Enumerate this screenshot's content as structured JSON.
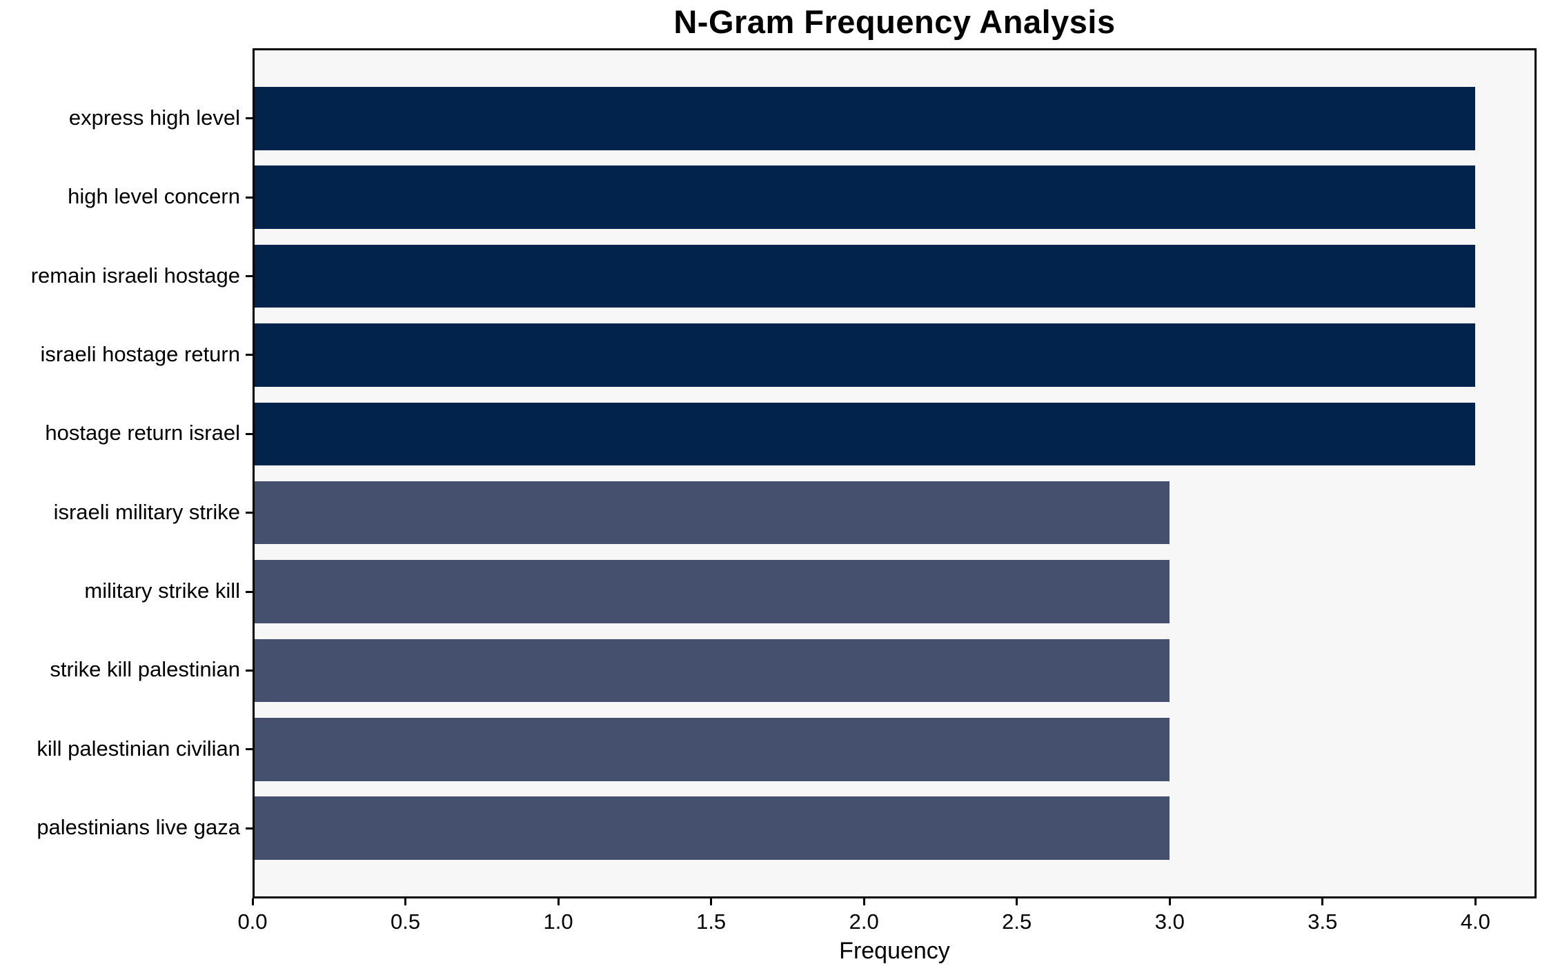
{
  "chart_data": {
    "type": "bar",
    "orientation": "horizontal",
    "title": "N-Gram Frequency Analysis",
    "xlabel": "Frequency",
    "ylabel": "",
    "categories": [
      "express high level",
      "high level concern",
      "remain israeli hostage",
      "israeli hostage return",
      "hostage return israel",
      "israeli military strike",
      "military strike kill",
      "strike kill palestinian",
      "kill palestinian civilian",
      "palestinians live gaza"
    ],
    "values": [
      4,
      4,
      4,
      4,
      4,
      3,
      3,
      3,
      3,
      3
    ],
    "bar_colors": [
      "#02234c",
      "#02234c",
      "#02234c",
      "#02234c",
      "#02234c",
      "#454f6e",
      "#454f6e",
      "#454f6e",
      "#454f6e",
      "#454f6e"
    ],
    "xlim": [
      0,
      4.2
    ],
    "xtick_values": [
      0,
      0.5,
      1,
      1.5,
      2,
      2.5,
      3,
      3.5,
      4
    ],
    "xtick_labels": [
      "0.0",
      "0.5",
      "1.0",
      "1.5",
      "2.0",
      "2.5",
      "3.0",
      "3.5",
      "4.0"
    ],
    "grid": false,
    "legend": null,
    "colors": {
      "plot_background": "#f7f7f7",
      "figure_background": "#ffffff",
      "spine": "#000000",
      "tick": "#000000",
      "text": "#000000"
    }
  }
}
